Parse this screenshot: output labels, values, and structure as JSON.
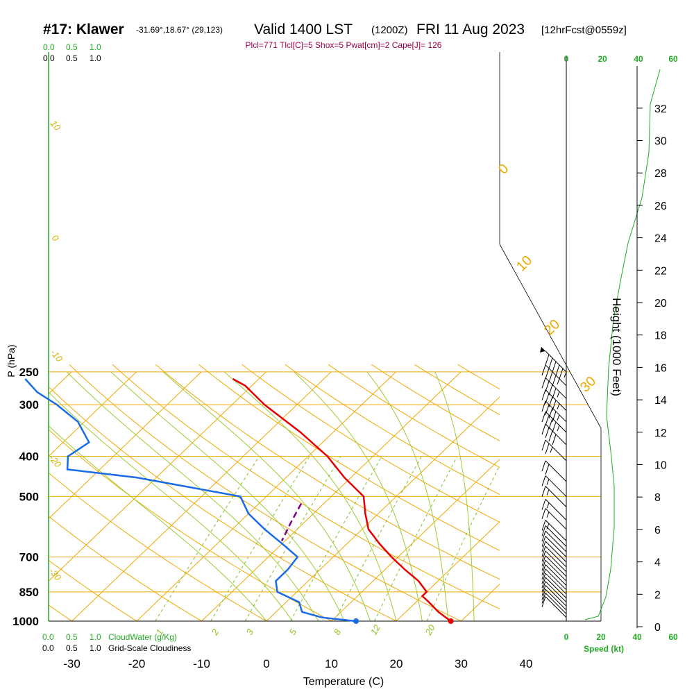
{
  "header": {
    "station": "#17: Klawer",
    "coords": "-31.69°,18.67° (29,123)",
    "valid": "Valid 1400 LST",
    "zulu": "(1200Z)",
    "date": "FRI 11 Aug 2023",
    "fcst": "[12hrFcst@0559z]"
  },
  "indices": "Plcl=771 Tlcl[C]=5 Shox=5 Pwat[cm]=2 Cape[J]= 126",
  "colors": {
    "temperature": "#e60000",
    "dewpoint": "#1a6be6",
    "isotherm": "#f0a800",
    "dry_adiabat": "#9acd32",
    "mixing_ratio": "#7cc02a",
    "parcel": "#800080",
    "green_text": "#22aa22",
    "indices_text": "#a0004a"
  },
  "cloud_scale": {
    "top_green": [
      "0.0",
      "0.5",
      "1.0"
    ],
    "top_black": [
      "0.0",
      "0.5",
      "1.0"
    ],
    "bottom_green": [
      "0.0",
      "0.5",
      "1.0"
    ],
    "bottom_black": [
      "0.0",
      "0.5",
      "1.0"
    ],
    "cloudwater_label": "CloudWater (g/Kg)",
    "cloudiness_label": "Grid-Scale Cloudiness"
  },
  "speed_axis": {
    "ticks": [
      "0",
      "20",
      "40",
      "60"
    ],
    "label": "Speed (kt)"
  },
  "height_axis": {
    "ticks": [
      "0",
      "2",
      "4",
      "6",
      "8",
      "10",
      "12",
      "14",
      "16",
      "18",
      "20",
      "22",
      "24",
      "26",
      "28",
      "30",
      "32"
    ],
    "label": "Height (1000 Feet)"
  },
  "mixing_ratio_labels": [
    "1",
    "2",
    "3",
    "5",
    "8",
    "12",
    "20"
  ],
  "adiabat_labels": [
    "10",
    "0",
    "-10",
    "-20",
    "-30"
  ],
  "isotherm_labels": [
    "0",
    "10",
    "20",
    "30"
  ],
  "chart_data": {
    "type": "line",
    "title": "",
    "xlabel": "Temperature (C)",
    "ylabel": "P (hPa)",
    "xlim": [
      -33,
      57
    ],
    "ylim": [
      1000,
      250
    ],
    "y_scale": "log",
    "x_ticks": [
      "-30",
      "-20",
      "-10",
      "0",
      "10",
      "20",
      "30",
      "40"
    ],
    "y_ticks": [
      "250",
      "300",
      "400",
      "500",
      "700",
      "850",
      "1000"
    ],
    "series": [
      {
        "name": "",
        "key": "temperature",
        "values": [
          [
            1000,
            28.4
          ],
          [
            950,
            25.0
          ],
          [
            900,
            22.0
          ],
          [
            870,
            20.0
          ],
          [
            850,
            20.0
          ],
          [
            800,
            17.0
          ],
          [
            750,
            13.0
          ],
          [
            700,
            9.0
          ],
          [
            650,
            5.0
          ],
          [
            600,
            1.0
          ],
          [
            550,
            -2.0
          ],
          [
            500,
            -5.0
          ],
          [
            450,
            -11.0
          ],
          [
            400,
            -17.0
          ],
          [
            350,
            -25.0
          ],
          [
            300,
            -35.0
          ],
          [
            270,
            -41.0
          ],
          [
            260,
            -44.0
          ]
        ]
      },
      {
        "name": "",
        "key": "dewpoint",
        "values": [
          [
            1000,
            13.8
          ],
          [
            980,
            8.0
          ],
          [
            950,
            4.0
          ],
          [
            900,
            2.0
          ],
          [
            850,
            -3.0
          ],
          [
            800,
            -5.0
          ],
          [
            750,
            -5.0
          ],
          [
            700,
            -5.5
          ],
          [
            650,
            -10.0
          ],
          [
            600,
            -15.0
          ],
          [
            550,
            -20.0
          ],
          [
            500,
            -24.0
          ],
          [
            450,
            -43.0
          ],
          [
            430,
            -55.0
          ],
          [
            400,
            -57.0
          ],
          [
            370,
            -56.0
          ],
          [
            330,
            -61.0
          ],
          [
            300,
            -67.0
          ],
          [
            280,
            -72.0
          ],
          [
            260,
            -76.0
          ]
        ]
      },
      {
        "name": "",
        "key": "parcel",
        "values": [
          [
            520,
            -13.5
          ],
          [
            580,
            -12.0
          ],
          [
            640,
            -10.5
          ]
        ]
      }
    ],
    "winds_kt": [
      {
        "p": 250,
        "spd": 105
      },
      {
        "p": 270,
        "spd": 45
      },
      {
        "p": 290,
        "spd": 45
      },
      {
        "p": 310,
        "spd": 45
      },
      {
        "p": 330,
        "spd": 45
      },
      {
        "p": 350,
        "spd": 45
      },
      {
        "p": 375,
        "spd": 40
      },
      {
        "p": 410,
        "spd": 25
      },
      {
        "p": 460,
        "spd": 20
      },
      {
        "p": 500,
        "spd": 15
      },
      {
        "p": 530,
        "spd": 15
      },
      {
        "p": 570,
        "spd": 15
      },
      {
        "p": 600,
        "spd": 15
      },
      {
        "p": 640,
        "spd": 15
      },
      {
        "p": 660,
        "spd": 10
      },
      {
        "p": 680,
        "spd": 10
      },
      {
        "p": 700,
        "spd": 10
      },
      {
        "p": 720,
        "spd": 10
      },
      {
        "p": 740,
        "spd": 10
      },
      {
        "p": 760,
        "spd": 10
      },
      {
        "p": 780,
        "spd": 10
      },
      {
        "p": 800,
        "spd": 10
      },
      {
        "p": 820,
        "spd": 10
      },
      {
        "p": 840,
        "spd": 10
      },
      {
        "p": 860,
        "spd": 10
      },
      {
        "p": 880,
        "spd": 10
      },
      {
        "p": 900,
        "spd": 10
      },
      {
        "p": 920,
        "spd": 10
      },
      {
        "p": 940,
        "spd": 10
      },
      {
        "p": 960,
        "spd": 10
      },
      {
        "p": 980,
        "spd": 10
      }
    ]
  }
}
